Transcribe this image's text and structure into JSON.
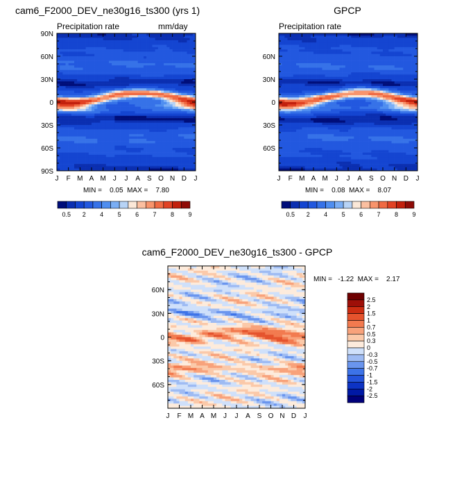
{
  "top_left": {
    "title": "cam6_F2000_DEV_ne30g16_ts300 (yrs 1)",
    "left_label": "Precipitation rate",
    "right_label": "mm/day",
    "min_max": "MIN =    0.05  MAX =    7.80"
  },
  "top_right": {
    "title": "GPCP",
    "left_label": "Precipitation rate",
    "min_max": "MIN =    0.08  MAX =    8.07"
  },
  "bottom": {
    "title": "cam6_F2000_DEV_ne30g16_ts300 - GPCP",
    "min_max": "MIN =   -1.22  MAX =    2.17"
  },
  "colors": {
    "precip": [
      "#000e7a",
      "#0b2fb1",
      "#1445d1",
      "#2258df",
      "#3672e8",
      "#4f8ef0",
      "#7aaef5",
      "#b7d3f6",
      "#fbe8d8",
      "#fbbfa0",
      "#f8946c",
      "#f06a43",
      "#e14224",
      "#c2200d",
      "#8f0b07"
    ],
    "diff": [
      "#00007a",
      "#0019a6",
      "#0d33c4",
      "#2453db",
      "#3d73e8",
      "#6a95ee",
      "#9ebbf3",
      "#cfe0fa",
      "#fdebdc",
      "#fbc9a9",
      "#f8a27b",
      "#f27a4f",
      "#e5532d",
      "#cc2d12",
      "#9e0f08",
      "#6e0000"
    ]
  },
  "chart_data": [
    {
      "type": "heatmap",
      "name_note": "",
      "title": "cam6_F2000_DEV_ne30g16_ts300 (yrs 1)",
      "subtitle_left": "Precipitation rate",
      "units": "mm/day",
      "x_ticks": [
        "J",
        "F",
        "M",
        "A",
        "M",
        "J",
        "J",
        "A",
        "S",
        "O",
        "N",
        "D",
        "J"
      ],
      "y_ticks": [
        "90S",
        "60S",
        "30S",
        "0",
        "30N",
        "60N",
        "90N"
      ],
      "ylim": [
        -90,
        90
      ],
      "colorbar_labels": [
        "0.5",
        "2",
        "4",
        "5",
        "6",
        "7",
        "8",
        "9"
      ],
      "colorbar_levels": [
        0.5,
        1,
        2,
        3,
        4,
        4.5,
        5,
        5.5,
        6,
        6.5,
        7,
        7.5,
        8,
        8.5,
        9
      ],
      "min": 0.05,
      "max": 7.8
    },
    {
      "type": "heatmap",
      "title": "GPCP",
      "subtitle_left": "Precipitation rate",
      "x_ticks": [
        "J",
        "F",
        "M",
        "A",
        "M",
        "J",
        "J",
        "A",
        "S",
        "O",
        "N",
        "D",
        "J"
      ],
      "y_ticks": [
        "60S",
        "30S",
        "0",
        "30N",
        "60N"
      ],
      "ylim": [
        -90,
        90
      ],
      "colorbar_labels": [
        "0.5",
        "2",
        "4",
        "5",
        "6",
        "7",
        "8",
        "9"
      ],
      "min": 0.08,
      "max": 8.07
    },
    {
      "type": "heatmap",
      "title": "cam6_F2000_DEV_ne30g16_ts300 - GPCP",
      "x_ticks": [
        "J",
        "F",
        "M",
        "A",
        "M",
        "J",
        "J",
        "A",
        "S",
        "O",
        "N",
        "D",
        "J"
      ],
      "y_ticks": [
        "60S",
        "30S",
        "0",
        "30N",
        "60N"
      ],
      "ylim": [
        -90,
        90
      ],
      "colorbar_labels": [
        "2.5",
        "2",
        "1.5",
        "1",
        "0.7",
        "0.5",
        "0.3",
        "0",
        "-0.3",
        "-0.5",
        "-0.7",
        "-1",
        "-1.5",
        "-2",
        "-2.5"
      ],
      "min": -1.22,
      "max": 2.17
    }
  ],
  "month_ticks": [
    "J",
    "F",
    "M",
    "A",
    "M",
    "J",
    "J",
    "A",
    "S",
    "O",
    "N",
    "D",
    "J"
  ],
  "lat_ticks_full": [
    "90N",
    "60N",
    "30N",
    "0",
    "30S",
    "60S",
    "90S"
  ],
  "lat_ticks_inner": [
    "60N",
    "30N",
    "0",
    "30S",
    "60S"
  ],
  "cbar_labels_precip": [
    "0.5",
    "2",
    "4",
    "5",
    "6",
    "7",
    "8",
    "9"
  ],
  "cbar_labels_diff": [
    "2.5",
    "2",
    "1.5",
    "1",
    "0.7",
    "0.5",
    "0.3",
    "0",
    "-0.3",
    "-0.5",
    "-0.7",
    "-1",
    "-1.5",
    "-2",
    "-2.5"
  ]
}
